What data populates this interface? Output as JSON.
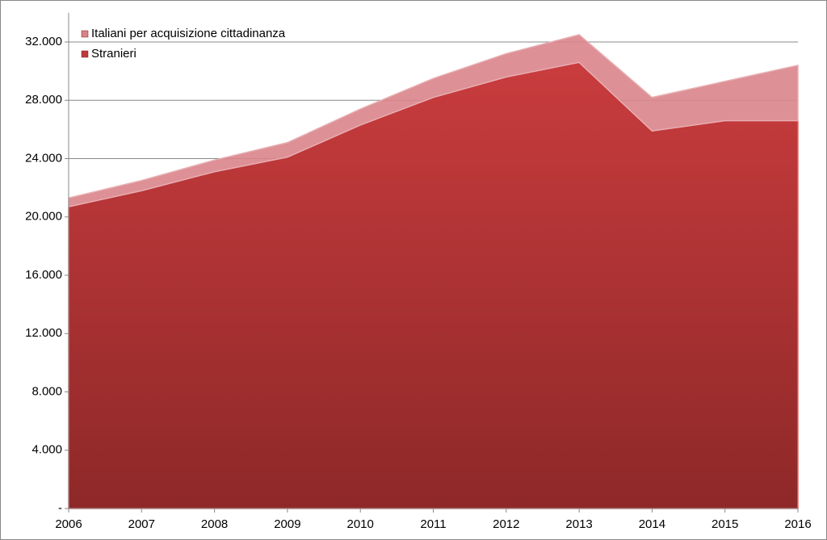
{
  "chart_data": {
    "type": "stacked-area",
    "categories": [
      "2006",
      "2007",
      "2008",
      "2009",
      "2010",
      "2011",
      "2012",
      "2013",
      "2014",
      "2015",
      "2016"
    ],
    "series": [
      {
        "name": "Stranieri",
        "color": "#c0393b",
        "values": [
          20700,
          21800,
          23100,
          24100,
          26300,
          28200,
          29600,
          30600,
          25900,
          26600,
          26600
        ]
      },
      {
        "name": "Italiani per acquisizione cittadinanza",
        "color": "#d9848a",
        "values": [
          600,
          700,
          800,
          1000,
          1100,
          1300,
          1600,
          1900,
          2300,
          2700,
          3800
        ]
      }
    ],
    "ylim": [
      0,
      34000
    ],
    "yticks": [
      {
        "value": 0,
        "label": "-"
      },
      {
        "value": 4000,
        "label": "4.000"
      },
      {
        "value": 8000,
        "label": "8.000"
      },
      {
        "value": 12000,
        "label": "12.000"
      },
      {
        "value": 16000,
        "label": "16.000"
      },
      {
        "value": 20000,
        "label": "20.000"
      },
      {
        "value": 24000,
        "label": "24.000"
      },
      {
        "value": 28000,
        "label": "28.000"
      },
      {
        "value": 32000,
        "label": "32.000"
      }
    ],
    "grid": true
  }
}
